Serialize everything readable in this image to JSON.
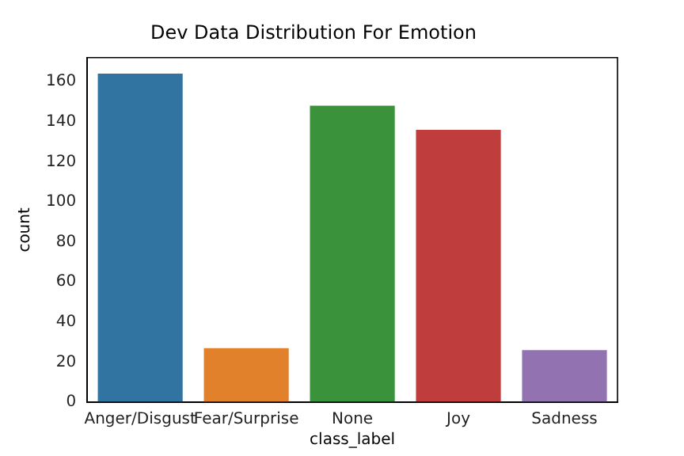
{
  "chart_data": {
    "type": "bar",
    "title": "Dev Data Distribution For Emotion",
    "xlabel": "class_label",
    "ylabel": "count",
    "categories": [
      "Anger/Disgust",
      "Fear/Surprise",
      "None",
      "Joy",
      "Sadness"
    ],
    "values": [
      164,
      27,
      148,
      136,
      26
    ],
    "colors": [
      "#3274a1",
      "#e1812c",
      "#3a923a",
      "#c03d3e",
      "#9372b2"
    ],
    "ylim": [
      0,
      172
    ],
    "yticks": [
      0,
      20,
      40,
      60,
      80,
      100,
      120,
      140,
      160
    ],
    "grid": false,
    "legend": false
  }
}
